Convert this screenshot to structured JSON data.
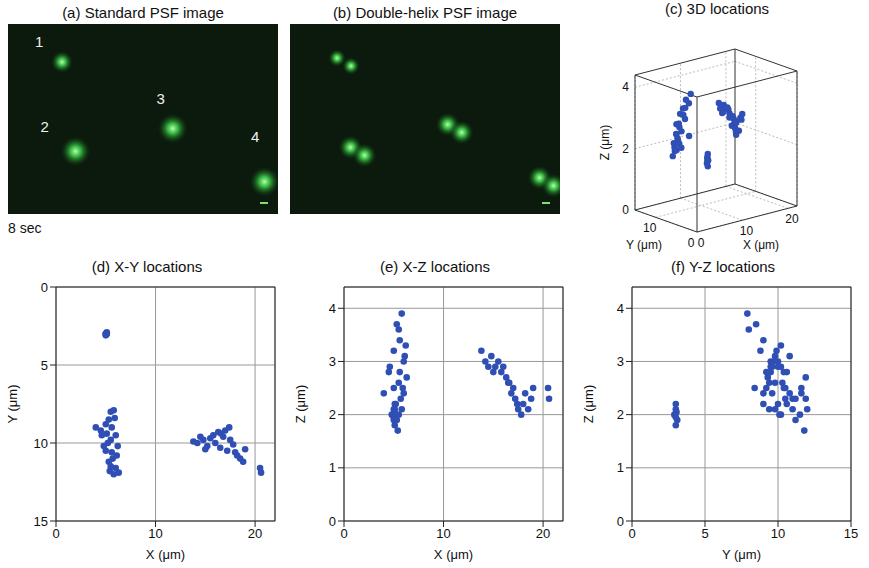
{
  "images": [
    {
      "title": "(a) Standard PSF image",
      "labels": [
        "1",
        "2",
        "3",
        "4"
      ]
    },
    {
      "title": "(b) Double-helix PSF image"
    }
  ],
  "time_label": "8 sec",
  "chart_data": [
    {
      "type": "scatter3d",
      "title": "(c) 3D locations",
      "xlabel": "X (μm)",
      "ylabel": "Y (μm)",
      "zlabel": "Z (μm)",
      "color": "#2f4fb5",
      "xlim": [
        0,
        22
      ],
      "xticks": [
        0,
        10,
        20
      ],
      "ylim": [
        0,
        15
      ],
      "yticks": [
        0,
        10
      ],
      "zlim": [
        0,
        4.4
      ],
      "zticks": [
        0,
        2,
        4
      ],
      "grid": true,
      "x": [
        5.1,
        5.0,
        5.1,
        5.0,
        5.1,
        5.0,
        5.05,
        4.0,
        4.5,
        5.0,
        5.5,
        5.8,
        5.3,
        5.6,
        6.0,
        5.5,
        5.2,
        4.8,
        5.0,
        5.6,
        6.1,
        5.7,
        5.3,
        5.5,
        6.0,
        6.3,
        5.8,
        5.4,
        4.6,
        6.2,
        5.9,
        5.1,
        13.8,
        14.2,
        14.8,
        15.2,
        15.5,
        15.8,
        16.0,
        16.3,
        16.5,
        16.8,
        17.0,
        17.2,
        17.5,
        17.8,
        18.0,
        18.2,
        18.5,
        18.8,
        19.0,
        17.4,
        16.6,
        15.0,
        20.5,
        20.6,
        14.5
      ],
      "y": [
        3.0,
        3.1,
        2.9,
        3.0,
        3.0,
        3.0,
        3.05,
        9.0,
        9.2,
        8.8,
        8.0,
        7.9,
        8.5,
        9.0,
        9.5,
        9.8,
        10.0,
        10.2,
        10.5,
        10.6,
        10.8,
        11.0,
        11.2,
        11.5,
        11.6,
        11.9,
        12.0,
        11.8,
        9.5,
        10.2,
        8.4,
        9.4,
        9.9,
        10.0,
        9.8,
        10.2,
        9.7,
        9.5,
        10.0,
        9.3,
        10.3,
        9.6,
        9.2,
        10.5,
        9.8,
        10.1,
        10.6,
        10.8,
        11.0,
        11.2,
        10.4,
        9.0,
        9.4,
        10.4,
        11.6,
        11.9,
        9.6
      ],
      "z": [
        1.8,
        1.9,
        2.0,
        2.1,
        2.2,
        1.95,
        2.05,
        2.4,
        2.8,
        3.2,
        3.6,
        3.9,
        3.7,
        3.4,
        3.0,
        2.6,
        2.2,
        2.0,
        2.5,
        2.8,
        3.1,
        2.3,
        1.9,
        2.0,
        2.4,
        2.7,
        2.1,
        1.7,
        2.9,
        3.3,
        2.5,
        2.1,
        3.2,
        3.0,
        3.1,
        2.9,
        3.0,
        2.8,
        2.9,
        2.7,
        2.6,
        2.4,
        2.5,
        2.3,
        2.1,
        2.0,
        2.2,
        2.4,
        2.1,
        2.3,
        2.5,
        2.2,
        2.6,
        2.8,
        2.5,
        2.3,
        2.9
      ]
    },
    {
      "type": "scatter",
      "title": "(d) X-Y locations",
      "xlabel": "X (μm)",
      "ylabel": "Y (μm)",
      "color": "#2f4fb5",
      "xlim": [
        0,
        22
      ],
      "xticks": [
        0,
        10,
        20
      ],
      "ylim": [
        15,
        0
      ],
      "yticks": [
        0,
        5,
        10,
        15
      ],
      "grid": true,
      "x": [
        5.1,
        5.0,
        5.1,
        5.0,
        5.1,
        5.0,
        5.05,
        4.0,
        4.5,
        5.0,
        5.5,
        5.8,
        5.3,
        5.6,
        6.0,
        5.5,
        5.2,
        4.8,
        5.0,
        5.6,
        6.1,
        5.7,
        5.3,
        5.5,
        6.0,
        6.3,
        5.8,
        5.4,
        4.6,
        6.2,
        5.9,
        5.1,
        13.8,
        14.2,
        14.8,
        15.2,
        15.5,
        15.8,
        16.0,
        16.3,
        16.5,
        16.8,
        17.0,
        17.2,
        17.5,
        17.8,
        18.0,
        18.2,
        18.5,
        18.8,
        19.0,
        17.4,
        16.6,
        15.0,
        20.5,
        20.6,
        14.5
      ],
      "y": [
        3.0,
        3.1,
        2.9,
        3.0,
        3.0,
        3.0,
        3.05,
        9.0,
        9.2,
        8.8,
        8.0,
        7.9,
        8.5,
        9.0,
        9.5,
        9.8,
        10.0,
        10.2,
        10.5,
        10.6,
        10.8,
        11.0,
        11.2,
        11.5,
        11.6,
        11.9,
        12.0,
        11.8,
        9.5,
        10.2,
        8.4,
        9.4,
        9.9,
        10.0,
        9.8,
        10.2,
        9.7,
        9.5,
        10.0,
        9.3,
        10.3,
        9.6,
        9.2,
        10.5,
        9.8,
        10.1,
        10.6,
        10.8,
        11.0,
        11.2,
        10.4,
        9.0,
        9.4,
        10.4,
        11.6,
        11.9,
        9.6
      ]
    },
    {
      "type": "scatter",
      "title": "(e) X-Z locations",
      "xlabel": "X (μm)",
      "ylabel": "Z (μm)",
      "color": "#2f4fb5",
      "xlim": [
        0,
        22
      ],
      "xticks": [
        0,
        10,
        20
      ],
      "ylim": [
        0,
        4.4
      ],
      "yticks": [
        0,
        1,
        2,
        3,
        4
      ],
      "grid": true,
      "x": [
        5.1,
        5.0,
        5.1,
        5.0,
        5.1,
        5.0,
        5.05,
        4.0,
        4.5,
        5.0,
        5.5,
        5.8,
        5.3,
        5.6,
        6.0,
        5.5,
        5.2,
        4.8,
        5.0,
        5.6,
        6.1,
        5.7,
        5.3,
        5.5,
        6.0,
        6.3,
        5.8,
        5.4,
        4.6,
        6.2,
        5.9,
        5.1,
        13.8,
        14.2,
        14.8,
        15.2,
        15.5,
        15.8,
        16.0,
        16.3,
        16.5,
        16.8,
        17.0,
        17.2,
        17.5,
        17.8,
        18.0,
        18.2,
        18.5,
        18.8,
        19.0,
        17.4,
        16.6,
        15.0,
        20.5,
        20.6,
        14.5
      ],
      "y": [
        1.8,
        1.9,
        2.0,
        2.1,
        2.2,
        1.95,
        2.05,
        2.4,
        2.8,
        3.2,
        3.6,
        3.9,
        3.7,
        3.4,
        3.0,
        2.6,
        2.2,
        2.0,
        2.5,
        2.8,
        3.1,
        2.3,
        1.9,
        2.0,
        2.4,
        2.7,
        2.1,
        1.7,
        2.9,
        3.3,
        2.5,
        2.1,
        3.2,
        3.0,
        3.1,
        2.9,
        3.0,
        2.8,
        2.9,
        2.7,
        2.6,
        2.4,
        2.5,
        2.3,
        2.1,
        2.0,
        2.2,
        2.4,
        2.1,
        2.3,
        2.5,
        2.2,
        2.6,
        2.8,
        2.5,
        2.3,
        2.9
      ]
    },
    {
      "type": "scatter",
      "title": "(f) Y-Z locations",
      "xlabel": "Y (μm)",
      "ylabel": "Z (μm)",
      "color": "#2f4fb5",
      "xlim": [
        0,
        15
      ],
      "xticks": [
        0,
        5,
        10,
        15
      ],
      "ylim": [
        0,
        4.4
      ],
      "yticks": [
        0,
        1,
        2,
        3,
        4
      ],
      "grid": true,
      "x": [
        3.0,
        3.1,
        2.9,
        3.0,
        3.0,
        3.0,
        3.05,
        9.0,
        9.2,
        8.8,
        8.0,
        7.9,
        8.5,
        9.0,
        9.5,
        9.8,
        10.0,
        10.2,
        10.5,
        10.6,
        10.8,
        11.0,
        11.2,
        11.5,
        11.6,
        11.9,
        12.0,
        11.8,
        9.5,
        10.2,
        8.4,
        9.4,
        9.9,
        10.0,
        9.8,
        10.2,
        9.7,
        9.5,
        10.0,
        9.3,
        10.3,
        9.6,
        9.2,
        10.5,
        9.8,
        10.1,
        10.6,
        10.8,
        11.0,
        11.2,
        10.4,
        9.0,
        9.4,
        10.4,
        11.6,
        11.9,
        9.6
      ],
      "y": [
        1.8,
        1.9,
        2.0,
        2.1,
        2.2,
        1.95,
        2.05,
        2.4,
        2.8,
        3.2,
        3.6,
        3.9,
        3.7,
        3.4,
        3.0,
        2.6,
        2.2,
        2.0,
        2.5,
        2.8,
        3.1,
        2.3,
        1.9,
        2.0,
        2.4,
        2.7,
        2.1,
        1.7,
        2.9,
        3.3,
        2.5,
        2.1,
        3.2,
        3.0,
        3.1,
        2.9,
        3.0,
        2.8,
        2.9,
        2.7,
        2.6,
        2.4,
        2.5,
        2.3,
        2.1,
        2.0,
        2.2,
        2.4,
        2.1,
        2.3,
        2.5,
        2.2,
        2.6,
        2.8,
        2.5,
        2.3,
        2.9
      ]
    }
  ]
}
